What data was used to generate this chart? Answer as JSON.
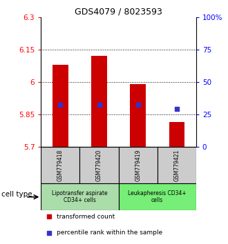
{
  "title": "GDS4079 / 8023593",
  "samples": [
    "GSM779418",
    "GSM779420",
    "GSM779419",
    "GSM779421"
  ],
  "bar_bottoms": [
    5.7,
    5.7,
    5.7,
    5.7
  ],
  "bar_tops": [
    6.08,
    6.12,
    5.99,
    5.815
  ],
  "percentile_values": [
    5.895,
    5.893,
    5.893,
    5.876
  ],
  "ylim": [
    5.7,
    6.3
  ],
  "yticks_left": [
    5.7,
    5.85,
    6.0,
    6.15,
    6.3
  ],
  "ytick_labels_left": [
    "5.7",
    "5.85",
    "6",
    "6.15",
    "6.3"
  ],
  "yticks_right_pct": [
    0,
    25,
    50,
    75,
    100
  ],
  "ytick_labels_right": [
    "0",
    "25",
    "50",
    "75",
    "100%"
  ],
  "grid_lines": [
    5.85,
    6.0,
    6.15
  ],
  "bar_color": "#cc0000",
  "percentile_color": "#3333cc",
  "bar_width": 0.4,
  "group0_color": "#aaddaa",
  "group1_color": "#77ee77",
  "group0_label": "Lipotransfer aspirate\nCD34+ cells",
  "group1_label": "Leukapheresis CD34+\ncells",
  "sample_box_color": "#cccccc",
  "legend_red_label": "transformed count",
  "legend_blue_label": "percentile rank within the sample",
  "cell_type_label": "cell type"
}
